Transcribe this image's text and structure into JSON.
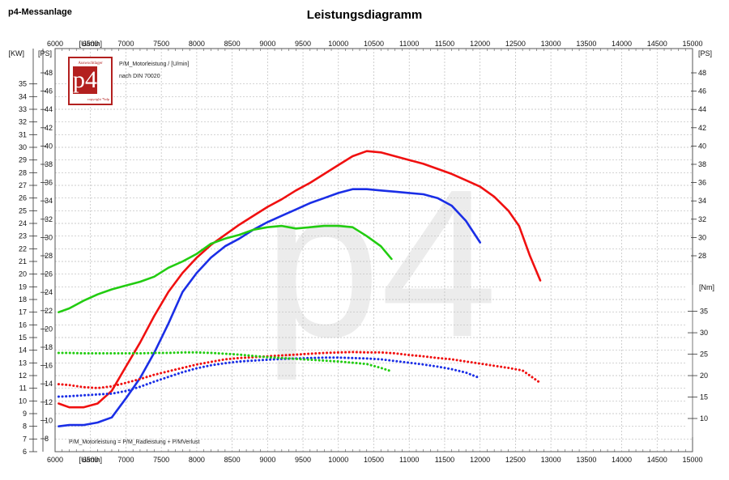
{
  "header": {
    "company": "p4-Messanlage",
    "title": "Leistungsdiagramm"
  },
  "legend": {
    "line1": "P/M_Motorleistung / [U/min]",
    "line2": "nach DIN 70020",
    "formula": "P/M_Motorleistung = P/M_Radleistung + P/MVerlust"
  },
  "logo": {
    "top": "Auswuchtlager",
    "main": "p4",
    "bottom": "copyright *bdp"
  },
  "colors": {
    "red": "#f01010",
    "blue": "#1a2ee6",
    "green": "#22cc11",
    "grid": "#b8b8b8"
  },
  "chart_data": {
    "type": "line",
    "x_unit": "[U/min]",
    "xlim": [
      6000,
      15000
    ],
    "x_ticks": [
      "6000",
      "6500",
      "7000",
      "7500",
      "8000",
      "8500",
      "9000",
      "9500",
      "10000",
      "10500",
      "11000",
      "11500",
      "12000",
      "12500",
      "13000",
      "13500",
      "14000",
      "14500",
      "15000"
    ],
    "y_left_kw": {
      "unit": "[KW]",
      "range": [
        6,
        36
      ],
      "ticks": [
        "6",
        "7",
        "8",
        "9",
        "10",
        "11",
        "12",
        "13",
        "14",
        "15",
        "16",
        "17",
        "18",
        "19",
        "20",
        "21",
        "22",
        "23",
        "24",
        "25",
        "26",
        "27",
        "28",
        "29",
        "30",
        "31",
        "32",
        "33",
        "34",
        "35"
      ]
    },
    "y_left_ps": {
      "unit": "[PS]",
      "range": [
        8,
        48
      ],
      "ticks": [
        "8",
        "10",
        "12",
        "14",
        "16",
        "18",
        "20",
        "22",
        "24",
        "26",
        "28",
        "30",
        "32",
        "34",
        "36",
        "38",
        "40",
        "42",
        "44",
        "46",
        "48"
      ]
    },
    "y_right_ps": {
      "unit": "[PS]",
      "range": [
        28,
        48
      ],
      "ticks": [
        "28",
        "30",
        "32",
        "34",
        "36",
        "38",
        "40",
        "42",
        "44",
        "46",
        "48"
      ]
    },
    "y_right_nm": {
      "unit": "[Nm]",
      "range": [
        10,
        37
      ],
      "ticks": [
        "10",
        "15",
        "20",
        "25",
        "30",
        "35"
      ]
    },
    "series": [
      {
        "color": "red",
        "axis": "kw",
        "style": "solid",
        "x": [
          6050,
          6200,
          6400,
          6600,
          6800,
          7000,
          7200,
          7400,
          7600,
          7800,
          8000,
          8200,
          8400,
          8600,
          8800,
          9000,
          9200,
          9400,
          9600,
          9800,
          10000,
          10200,
          10400,
          10600,
          10800,
          11000,
          11200,
          11400,
          11600,
          11800,
          12000,
          12200,
          12400,
          12550,
          12700,
          12850
        ],
        "y": [
          9.8,
          9.5,
          9.5,
          9.8,
          10.8,
          12.7,
          14.6,
          16.7,
          18.6,
          20.1,
          21.3,
          22.3,
          23.1,
          23.9,
          24.6,
          25.3,
          25.9,
          26.6,
          27.2,
          27.9,
          28.6,
          29.3,
          29.7,
          29.6,
          29.3,
          29.0,
          28.7,
          28.3,
          27.9,
          27.4,
          26.9,
          26.1,
          25.0,
          23.8,
          21.5,
          19.5
        ]
      },
      {
        "color": "blue",
        "axis": "kw",
        "style": "solid",
        "x": [
          6050,
          6200,
          6400,
          6600,
          6800,
          7000,
          7200,
          7400,
          7600,
          7800,
          8000,
          8200,
          8400,
          8600,
          8800,
          9000,
          9200,
          9400,
          9600,
          9800,
          10000,
          10200,
          10400,
          10600,
          10800,
          11000,
          11200,
          11400,
          11600,
          11800,
          12000
        ],
        "y": [
          8.0,
          8.1,
          8.1,
          8.3,
          8.7,
          10.2,
          11.8,
          13.8,
          16.1,
          18.6,
          20.1,
          21.3,
          22.2,
          22.8,
          23.5,
          24.1,
          24.6,
          25.1,
          25.6,
          26.0,
          26.4,
          26.7,
          26.7,
          26.6,
          26.5,
          26.4,
          26.3,
          26.0,
          25.4,
          24.2,
          22.5
        ]
      },
      {
        "color": "green",
        "axis": "kw",
        "style": "solid",
        "x": [
          6050,
          6200,
          6400,
          6600,
          6800,
          7000,
          7200,
          7400,
          7600,
          7800,
          8000,
          8200,
          8400,
          8600,
          8800,
          9000,
          9200,
          9400,
          9600,
          9800,
          10000,
          10200,
          10400,
          10600,
          10750
        ],
        "y": [
          17.0,
          17.3,
          17.9,
          18.4,
          18.8,
          19.1,
          19.4,
          19.8,
          20.5,
          21.0,
          21.6,
          22.4,
          22.8,
          23.1,
          23.5,
          23.7,
          23.8,
          23.6,
          23.7,
          23.8,
          23.8,
          23.7,
          23.0,
          22.2,
          21.2
        ]
      },
      {
        "color": "red",
        "axis": "nm",
        "style": "dotted",
        "x": [
          6050,
          6200,
          6400,
          6600,
          6800,
          7000,
          7200,
          7400,
          7600,
          7800,
          8000,
          8200,
          8400,
          8600,
          8800,
          9000,
          9200,
          9400,
          9600,
          9800,
          10000,
          10200,
          10400,
          10600,
          10800,
          11000,
          11200,
          11400,
          11600,
          11800,
          12000,
          12200,
          12400,
          12600,
          12850
        ],
        "y": [
          18.0,
          17.8,
          17.3,
          17.1,
          17.5,
          18.3,
          19.2,
          20.2,
          21.0,
          21.8,
          22.6,
          23.2,
          23.8,
          24.1,
          24.3,
          24.5,
          24.7,
          24.9,
          25.1,
          25.3,
          25.4,
          25.5,
          25.4,
          25.4,
          25.2,
          24.8,
          24.5,
          24.1,
          23.8,
          23.3,
          22.8,
          22.3,
          21.8,
          21.2,
          18.3
        ]
      },
      {
        "color": "blue",
        "axis": "nm",
        "style": "dotted",
        "x": [
          6050,
          6200,
          6400,
          6600,
          6800,
          7000,
          7200,
          7400,
          7600,
          7800,
          8000,
          8200,
          8400,
          8600,
          8800,
          9000,
          9200,
          9400,
          9600,
          9800,
          10000,
          10200,
          10400,
          10600,
          10800,
          11000,
          11200,
          11400,
          11600,
          11800,
          12000
        ],
        "y": [
          15.1,
          15.2,
          15.4,
          15.6,
          15.8,
          16.4,
          17.4,
          18.6,
          19.7,
          20.8,
          21.7,
          22.4,
          22.9,
          23.3,
          23.5,
          23.7,
          23.9,
          24.0,
          24.1,
          24.2,
          24.2,
          24.1,
          24.0,
          23.8,
          23.4,
          23.0,
          22.6,
          22.1,
          21.5,
          20.7,
          19.4
        ]
      },
      {
        "color": "green",
        "axis": "nm",
        "style": "dotted",
        "x": [
          6050,
          6200,
          6400,
          6600,
          6800,
          7000,
          7200,
          7400,
          7600,
          7800,
          8000,
          8200,
          8400,
          8600,
          8800,
          9000,
          9200,
          9400,
          9600,
          9800,
          10000,
          10200,
          10400,
          10600,
          10750
        ],
        "y": [
          25.3,
          25.3,
          25.2,
          25.2,
          25.2,
          25.2,
          25.2,
          25.3,
          25.3,
          25.4,
          25.4,
          25.3,
          25.1,
          24.9,
          24.6,
          24.3,
          24.1,
          23.9,
          23.7,
          23.5,
          23.3,
          23.0,
          22.7,
          21.8,
          21.0
        ]
      }
    ]
  }
}
